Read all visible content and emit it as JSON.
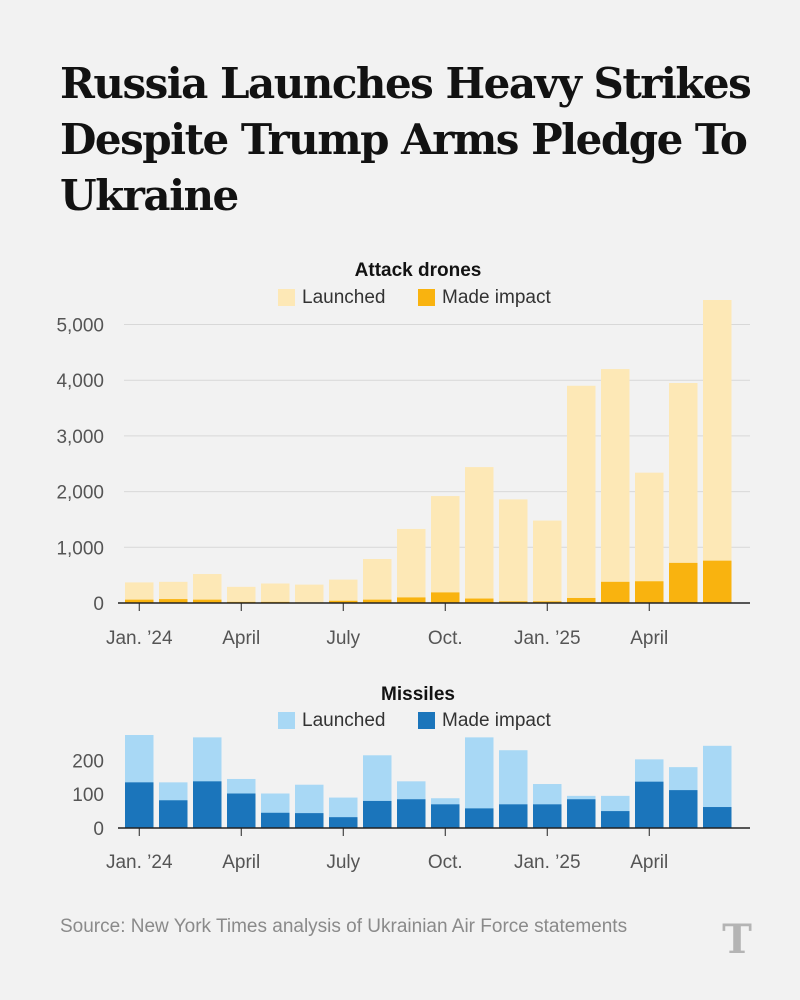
{
  "title": "Russia Launches Heavy Strikes Despite Trump Arms Pledge To Ukraine",
  "source": "Source: New York Times analysis of Ukrainian Air Force statements",
  "logo_glyph": "T",
  "chart_data": [
    {
      "type": "bar",
      "stacked": "overlay",
      "title": "Attack drones",
      "legend_position": "top-center",
      "categories": [
        "Jan 2024",
        "Feb 2024",
        "Mar 2024",
        "Apr 2024",
        "May 2024",
        "Jun 2024",
        "Jul 2024",
        "Aug 2024",
        "Sep 2024",
        "Oct 2024",
        "Nov 2024",
        "Dec 2024",
        "Jan 2025",
        "Feb 2025",
        "Mar 2025",
        "Apr 2025",
        "May 2025",
        "Jun 2025"
      ],
      "series": [
        {
          "name": "Launched",
          "color": "#fde8b6",
          "values": [
            370,
            380,
            520,
            290,
            350,
            330,
            420,
            790,
            1330,
            1920,
            2440,
            1860,
            1480,
            3900,
            4200,
            2340,
            3950,
            5440
          ]
        },
        {
          "name": "Made impact",
          "color": "#f9b30f",
          "values": [
            60,
            70,
            60,
            20,
            20,
            10,
            40,
            60,
            100,
            190,
            80,
            30,
            30,
            90,
            380,
            390,
            720,
            760
          ]
        }
      ],
      "ylim": [
        0,
        5440
      ],
      "yticks": [
        0,
        1000,
        2000,
        3000,
        4000,
        5000
      ],
      "ytick_labels": [
        "0",
        "1,000",
        "2,000",
        "3,000",
        "4,000",
        "5,000"
      ],
      "xtick_indices": [
        0,
        3,
        6,
        9,
        12,
        15
      ],
      "xtick_labels": [
        "Jan. ’24",
        "April",
        "July",
        "Oct.",
        "Jan. ’25",
        "April"
      ],
      "xlabel": "",
      "ylabel": ""
    },
    {
      "type": "bar",
      "stacked": "overlay",
      "title": "Missiles",
      "legend_position": "top-center",
      "categories": [
        "Jan 2024",
        "Feb 2024",
        "Mar 2024",
        "Apr 2024",
        "May 2024",
        "Jun 2024",
        "Jul 2024",
        "Aug 2024",
        "Sep 2024",
        "Oct 2024",
        "Nov 2024",
        "Dec 2024",
        "Jan 2025",
        "Feb 2025",
        "Mar 2025",
        "Apr 2025",
        "May 2025",
        "Jun 2025"
      ],
      "series": [
        {
          "name": "Launched",
          "color": "#a8d8f5",
          "values": [
            275,
            135,
            268,
            145,
            102,
            128,
            90,
            215,
            138,
            88,
            268,
            230,
            130,
            95,
            95,
            203,
            180,
            243
          ]
        },
        {
          "name": "Made impact",
          "color": "#1b75bb",
          "values": [
            135,
            82,
            138,
            102,
            45,
            44,
            32,
            80,
            85,
            70,
            58,
            70,
            70,
            85,
            50,
            137,
            112,
            62
          ]
        }
      ],
      "ylim": [
        0,
        275
      ],
      "yticks": [
        0,
        100,
        200
      ],
      "ytick_labels": [
        "0",
        "100",
        "200"
      ],
      "xtick_indices": [
        0,
        3,
        6,
        9,
        12,
        15
      ],
      "xtick_labels": [
        "Jan. ’24",
        "April",
        "July",
        "Oct.",
        "Jan. ’25",
        "April"
      ],
      "xlabel": "",
      "ylabel": ""
    }
  ]
}
